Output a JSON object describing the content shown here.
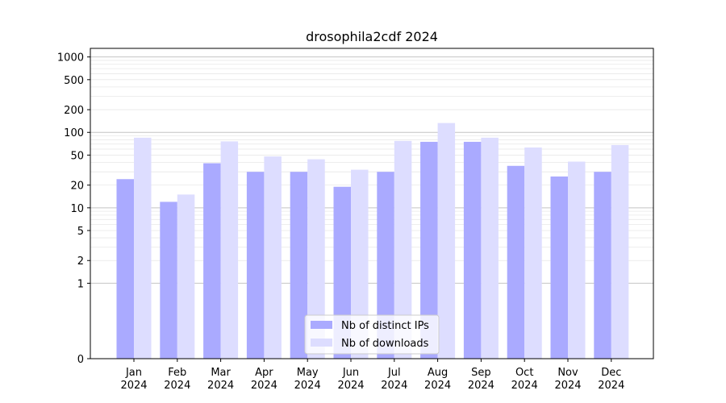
{
  "chart_data": {
    "type": "bar",
    "title": "drosophila2cdf 2024",
    "xlabel": "",
    "ylabel": "",
    "yscale": "symlog",
    "ylim": [
      0,
      1300
    ],
    "yticks": [
      {
        "value": 0,
        "label": "0"
      },
      {
        "value": 1,
        "label": "1"
      },
      {
        "value": 2,
        "label": "2"
      },
      {
        "value": 5,
        "label": "5"
      },
      {
        "value": 10,
        "label": "10"
      },
      {
        "value": 20,
        "label": "20"
      },
      {
        "value": 50,
        "label": "50"
      },
      {
        "value": 100,
        "label": "100"
      },
      {
        "value": 200,
        "label": "200"
      },
      {
        "value": 500,
        "label": "500"
      },
      {
        "value": 1000,
        "label": "1000"
      }
    ],
    "categories": [
      {
        "month": "Jan",
        "year": "2024"
      },
      {
        "month": "Feb",
        "year": "2024"
      },
      {
        "month": "Mar",
        "year": "2024"
      },
      {
        "month": "Apr",
        "year": "2024"
      },
      {
        "month": "May",
        "year": "2024"
      },
      {
        "month": "Jun",
        "year": "2024"
      },
      {
        "month": "Jul",
        "year": "2024"
      },
      {
        "month": "Aug",
        "year": "2024"
      },
      {
        "month": "Sep",
        "year": "2024"
      },
      {
        "month": "Oct",
        "year": "2024"
      },
      {
        "month": "Nov",
        "year": "2024"
      },
      {
        "month": "Dec",
        "year": "2024"
      }
    ],
    "series": [
      {
        "name": "Nb of distinct IPs",
        "color": "#aaaaff",
        "values": [
          24,
          12,
          39,
          30,
          30,
          19,
          30,
          75,
          75,
          36,
          26,
          30
        ]
      },
      {
        "name": "Nb of downloads",
        "color": "#ddddff",
        "values": [
          85,
          15,
          76,
          48,
          44,
          32,
          77,
          133,
          85,
          63,
          41,
          68
        ]
      }
    ],
    "grid": true,
    "legend_position": "bottom-center"
  }
}
